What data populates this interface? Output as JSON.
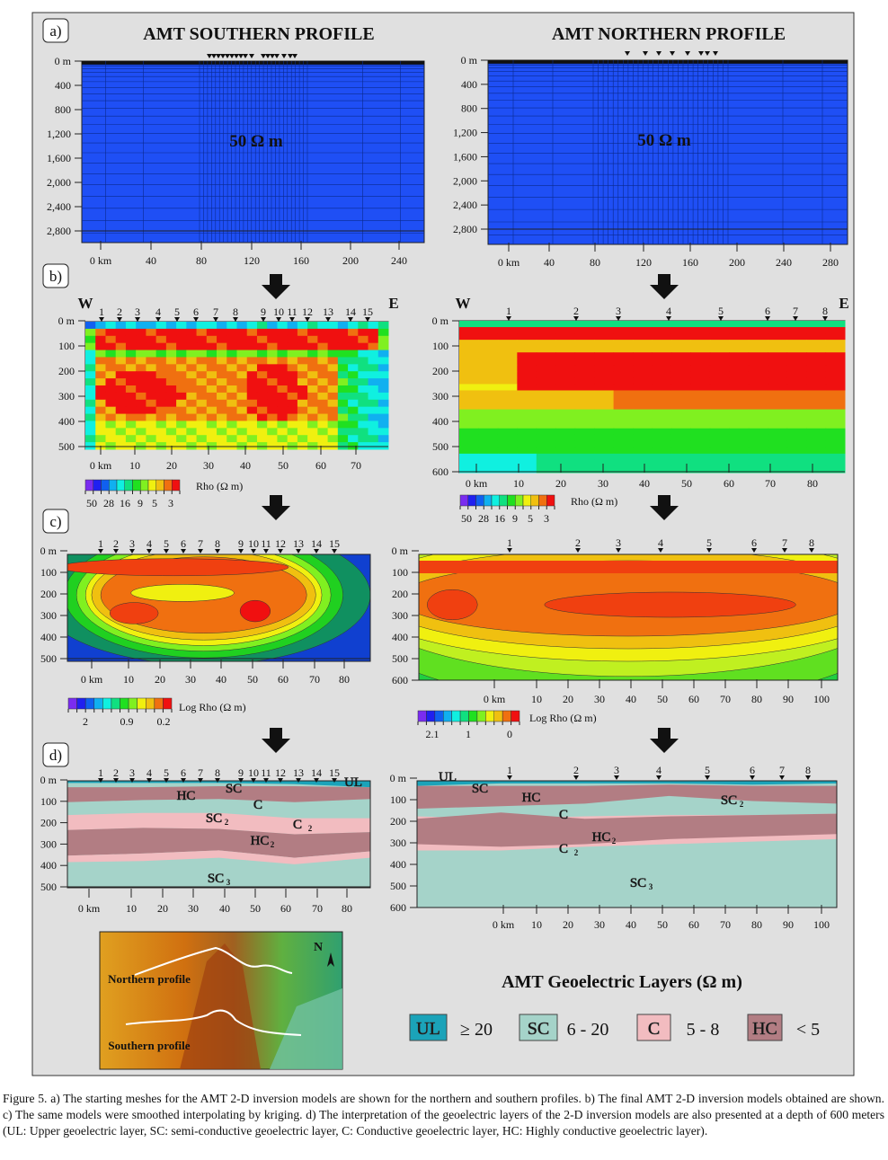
{
  "panel_labels": [
    "a)",
    "b)",
    "c)",
    "d)"
  ],
  "panel_a": {
    "south": {
      "title": "AMT SOUTHERN PROFILE",
      "value_label": "50 Ω m",
      "depth_ticks": [
        "0 m",
        "400",
        "800",
        "1,200",
        "1,600",
        "2,000",
        "2,400",
        "2,800"
      ],
      "km_ticks": [
        "0 km",
        "40",
        "80",
        "120",
        "160",
        "200",
        "240"
      ],
      "stations": 15
    },
    "north": {
      "title": "AMT NORTHERN PROFILE",
      "value_label": "50 Ω m",
      "depth_ticks": [
        "0 m",
        "400",
        "800",
        "1,200",
        "1,600",
        "2,000",
        "2,400",
        "2,800"
      ],
      "km_ticks": [
        "0 km",
        "40",
        "80",
        "120",
        "160",
        "200",
        "240",
        "280"
      ],
      "stations": 8
    },
    "mesh_color": "#1f4ff5"
  },
  "panel_b": {
    "west": "W",
    "east": "E",
    "south": {
      "stations": [
        "1",
        "2",
        "3",
        "4",
        "5",
        "6",
        "7",
        "8",
        "9",
        "10",
        "11",
        "12",
        "13",
        "14",
        "15"
      ],
      "depth_ticks": [
        "0 m",
        "100",
        "200",
        "300",
        "400",
        "500"
      ],
      "km_ticks": [
        "0 km",
        "10",
        "20",
        "30",
        "40",
        "50",
        "60",
        "70"
      ]
    },
    "north": {
      "stations": [
        "1",
        "2",
        "3",
        "4",
        "5",
        "6",
        "7",
        "8"
      ],
      "depth_ticks": [
        "0 m",
        "100",
        "200",
        "300",
        "400",
        "500",
        "600"
      ],
      "km_ticks": [
        "0 km",
        "10",
        "20",
        "30",
        "40",
        "50",
        "60",
        "70",
        "80"
      ]
    },
    "legend_label": "Rho (Ω m)",
    "legend_ticks": [
      "50",
      "28",
      "16",
      "9",
      "5",
      "3"
    ]
  },
  "panel_c": {
    "south": {
      "stations": [
        "1",
        "2",
        "3",
        "4",
        "5",
        "6",
        "7",
        "8",
        "9",
        "10",
        "11",
        "12",
        "13",
        "14",
        "15"
      ],
      "depth_ticks": [
        "0 m",
        "100",
        "200",
        "300",
        "400",
        "500"
      ],
      "km_ticks": [
        "0 km",
        "10",
        "20",
        "30",
        "40",
        "50",
        "60",
        "70",
        "80"
      ],
      "legend_ticks": [
        "2",
        "0.9",
        "0.2"
      ]
    },
    "north": {
      "stations": [
        "1",
        "2",
        "3",
        "4",
        "5",
        "6",
        "7",
        "8"
      ],
      "depth_ticks": [
        "0 m",
        "100",
        "200",
        "300",
        "400",
        "500",
        "600"
      ],
      "km_ticks": [
        "0 km",
        "10",
        "20",
        "30",
        "40",
        "50",
        "60",
        "70",
        "80",
        "90",
        "100"
      ],
      "legend_ticks": [
        "2.1",
        "1",
        "0"
      ]
    },
    "legend_label": "Log Rho (Ω m)"
  },
  "panel_d": {
    "south": {
      "stations": [
        "1",
        "2",
        "3",
        "4",
        "5",
        "6",
        "7",
        "8",
        "9",
        "10",
        "11",
        "12",
        "13",
        "14",
        "15"
      ],
      "depth_ticks": [
        "0 m",
        "100",
        "200",
        "300",
        "400",
        "500"
      ],
      "km_ticks": [
        "0 km",
        "10",
        "20",
        "30",
        "40",
        "50",
        "60",
        "70",
        "80"
      ],
      "layer_labels": {
        "ul": "UL",
        "hc": "HC",
        "sc": "SC",
        "c": "C",
        "sc2": "SC",
        "c2": "C",
        "hc2": "HC",
        "sc3": "SC"
      }
    },
    "north": {
      "stations": [
        "1",
        "2",
        "3",
        "4",
        "5",
        "6",
        "7",
        "8"
      ],
      "depth_ticks": [
        "0 m",
        "100",
        "200",
        "300",
        "400",
        "500",
        "600"
      ],
      "km_ticks": [
        "0 km",
        "10",
        "20",
        "30",
        "40",
        "50",
        "60",
        "70",
        "80",
        "90",
        "100"
      ],
      "layer_labels": {
        "ul": "UL",
        "sc": "SC",
        "hc": "HC",
        "c": "C",
        "hc2": "HC",
        "c2": "C",
        "sc2": "SC",
        "sc3": "SC"
      }
    },
    "subscripts": {
      "two": "2",
      "three": "3"
    }
  },
  "map": {
    "northern_label": "Northern profile",
    "southern_label": "Southern profile",
    "north_arrow": "N"
  },
  "legend": {
    "title": "AMT Geoelectric Layers (Ω m)",
    "items": [
      {
        "code": "UL",
        "range": "≥ 20",
        "color": "#1ba3b9"
      },
      {
        "code": "SC",
        "range": "6 - 20",
        "color": "#a5d3c9"
      },
      {
        "code": "C",
        "range": "5 - 8",
        "color": "#f2bcc0"
      },
      {
        "code": "HC",
        "range": "< 5",
        "color": "#b27d83"
      }
    ]
  },
  "colormap": [
    "#7a2cf0",
    "#2020f0",
    "#1060f0",
    "#10b0f0",
    "#10f0e0",
    "#10e080",
    "#20e020",
    "#80f020",
    "#f0f010",
    "#f0c010",
    "#f07010",
    "#f01010"
  ],
  "caption": "Figure 5. a) The starting meshes for the AMT 2-D inversion models are shown for the northern and southern profiles. b) The final AMT 2-D inversion models obtained are shown. c) The same models were smoothed interpolating by kriging. d) The interpretation of the geoelectric layers of the 2-D inversion models are also presented at a depth of 600 meters (UL: Upper geoelectric layer, SC: semi-conductive geoelectric layer, C: Conductive geoelectric layer, HC: Highly conductive geoelectric layer)."
}
